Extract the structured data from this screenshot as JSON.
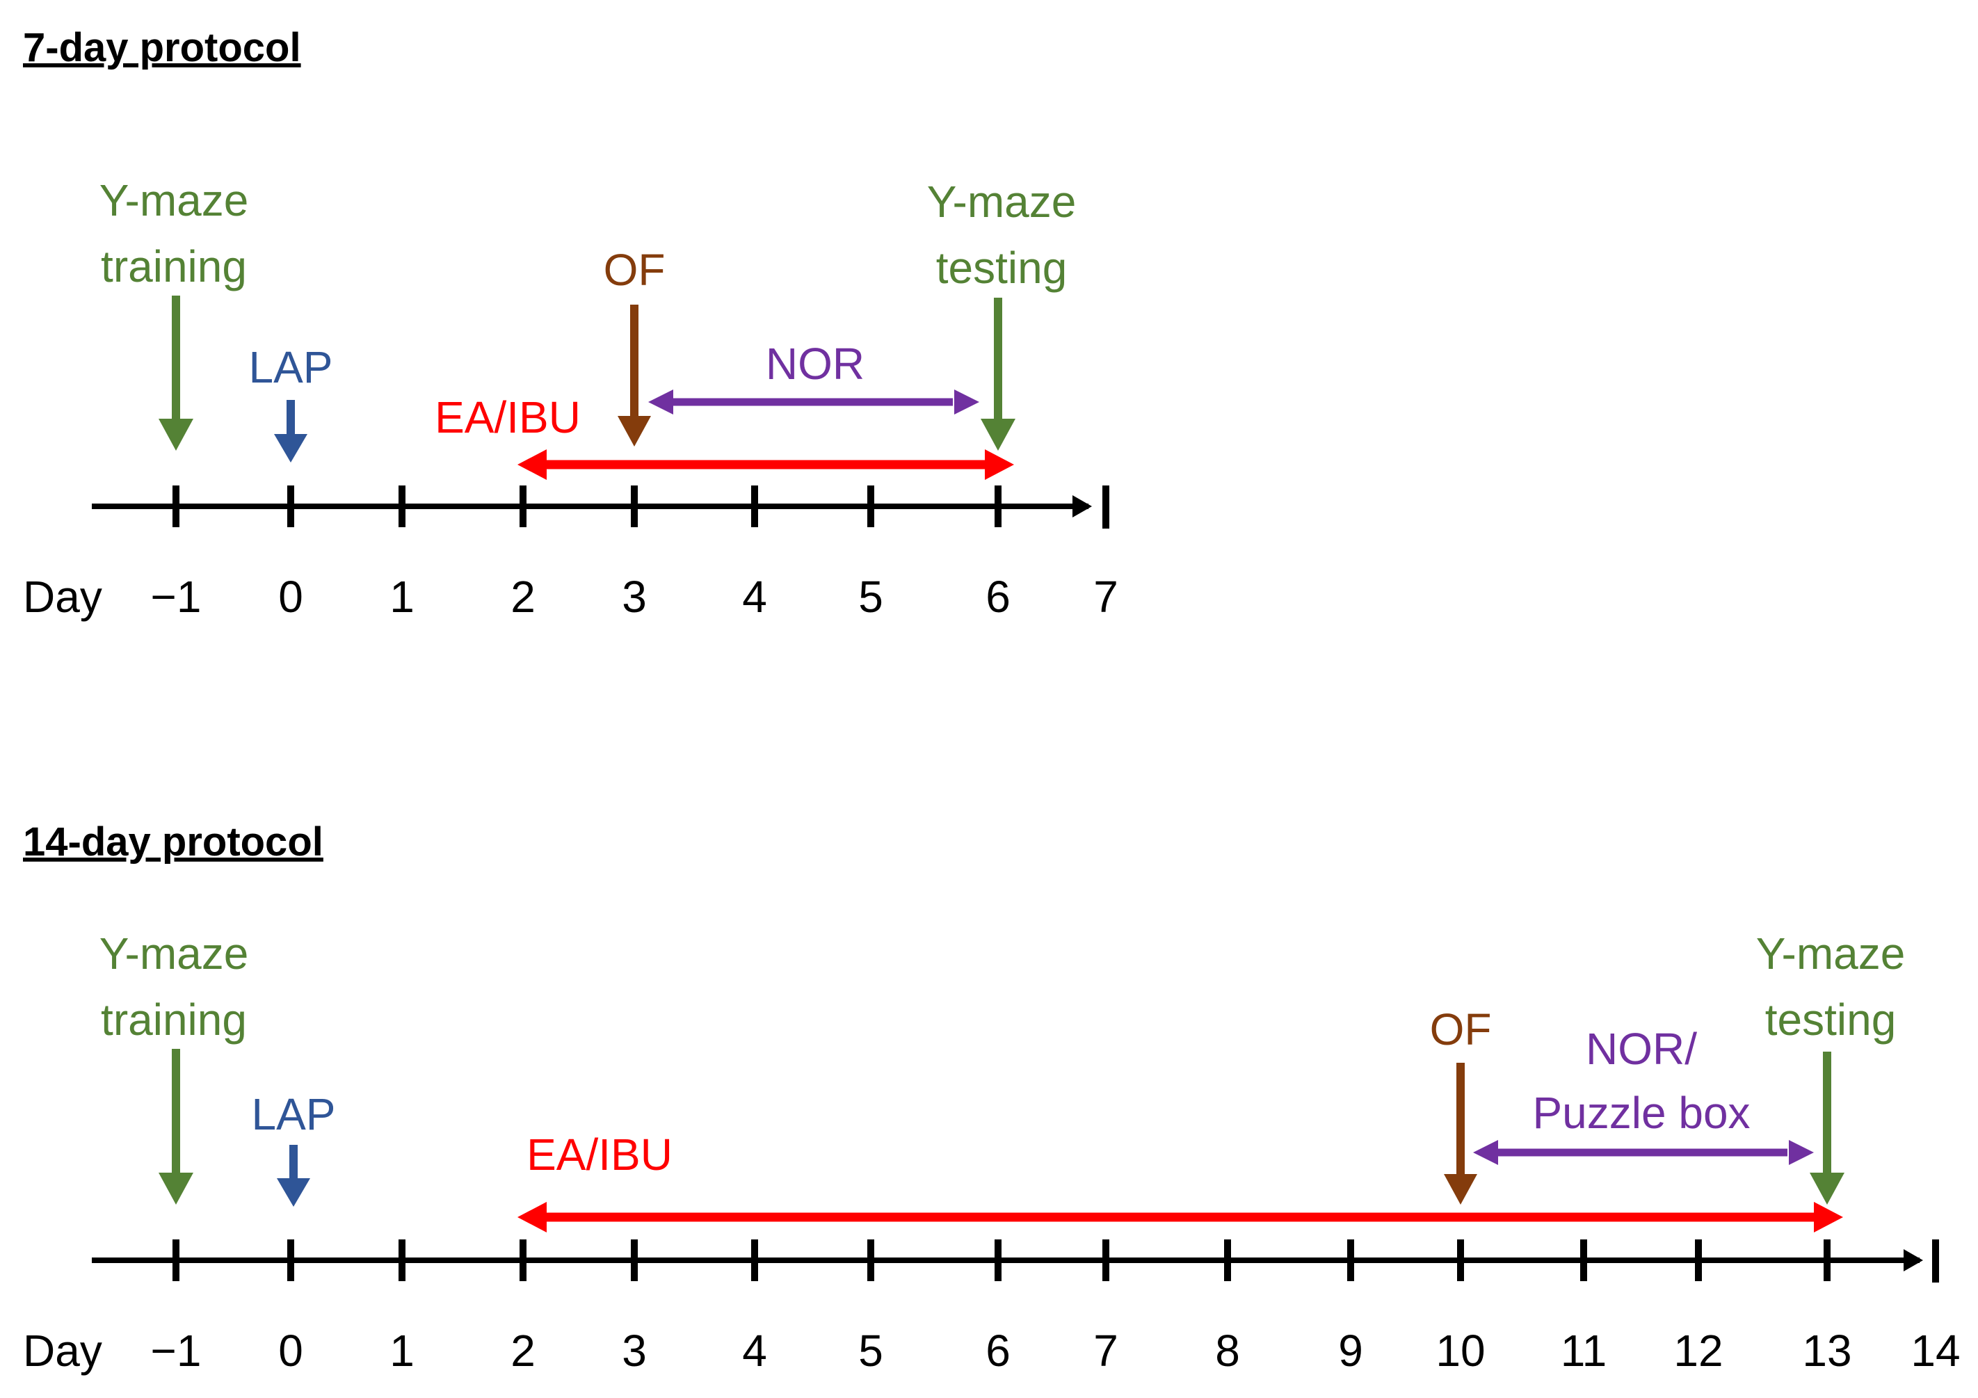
{
  "colors": {
    "green": "#548235",
    "blue": "#2f5597",
    "brown": "#843c0c",
    "purple": "#7030a0",
    "red": "#ff0000",
    "axis": "#000000"
  },
  "protocols": [
    {
      "id": "7day",
      "title": "7-day protocol",
      "axis_label": "Day",
      "days": [
        "−1",
        "0",
        "1",
        "2",
        "3",
        "4",
        "5",
        "6",
        "7"
      ],
      "annotations": {
        "ymaze_training": {
          "lines": [
            "Y-maze",
            "training"
          ],
          "day": -1
        },
        "lap": {
          "label": "LAP",
          "day": 0
        },
        "of": {
          "label": "OF",
          "day": 3
        },
        "ymaze_testing": {
          "lines": [
            "Y-maze",
            "testing"
          ],
          "day": 6
        },
        "nor": {
          "lines": [
            "NOR"
          ],
          "from_day": 3,
          "to_day": 6
        },
        "ea_ibu": {
          "label": "EA/IBU",
          "from_day": 2,
          "to_day": 6
        }
      }
    },
    {
      "id": "14day",
      "title": "14-day protocol",
      "axis_label": "Day",
      "days": [
        "−1",
        "0",
        "1",
        "2",
        "3",
        "4",
        "5",
        "6",
        "7",
        "8",
        "9",
        "10",
        "11",
        "12",
        "13",
        "14"
      ],
      "annotations": {
        "ymaze_training": {
          "lines": [
            "Y-maze",
            "training"
          ],
          "day": -1
        },
        "lap": {
          "label": "LAP",
          "day": 0
        },
        "of": {
          "label": "OF",
          "day": 10
        },
        "ymaze_testing": {
          "lines": [
            "Y-maze",
            "testing"
          ],
          "day": 13
        },
        "nor": {
          "lines": [
            "NOR/",
            "Puzzle box"
          ],
          "from_day": 10,
          "to_day": 13
        },
        "ea_ibu": {
          "label": "EA/IBU",
          "from_day": 2,
          "to_day": 13
        }
      }
    }
  ]
}
